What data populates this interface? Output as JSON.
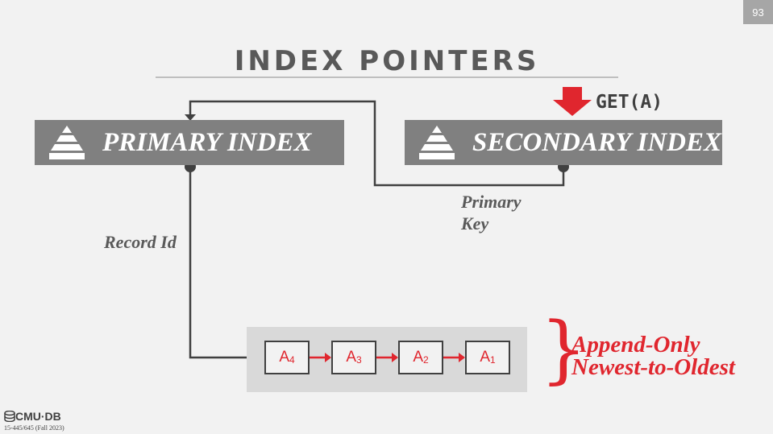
{
  "slide_number": "93",
  "title": "INDEX POINTERS",
  "primary_index": {
    "label": "PRIMARY INDEX"
  },
  "secondary_index": {
    "label": "SECONDARY INDEX"
  },
  "query": "GET(A)",
  "edge_labels": {
    "primary_key_line1": "Primary",
    "primary_key_line2": "Key",
    "record_id": "Record Id"
  },
  "version_chain": [
    {
      "base": "A",
      "sub": "4"
    },
    {
      "base": "A",
      "sub": "3"
    },
    {
      "base": "A",
      "sub": "2"
    },
    {
      "base": "A",
      "sub": "1"
    }
  ],
  "note": {
    "line1": "Append-Only",
    "line2": "Newest-to-Oldest"
  },
  "footer": {
    "logo": "CMU·DB",
    "course": "15-445/645 (Fall 2023)"
  },
  "colors": {
    "accent": "#e0262e",
    "box": "#808080",
    "text": "#595959",
    "line": "#404040"
  },
  "icons": {
    "index": "pyramid-icon",
    "query": "arrow-down-icon",
    "logo": "database-icon"
  }
}
